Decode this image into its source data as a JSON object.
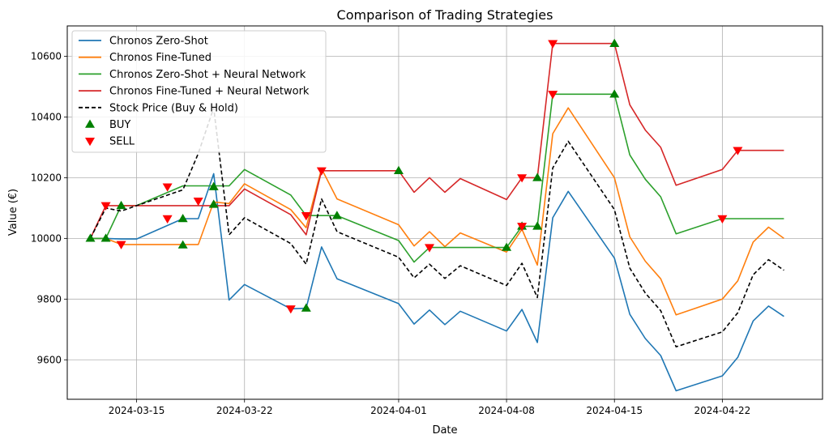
{
  "chart_data": {
    "type": "line",
    "title": "Comparison of Trading Strategies",
    "xlabel": "Date",
    "ylabel": "Value (€)",
    "xlim": [
      "2024-03-10T12:00",
      "2024-04-28T12:00"
    ],
    "ylim": [
      9470,
      10700
    ],
    "x_ticks": [
      "2024-03-15",
      "2024-03-22",
      "2024-04-01",
      "2024-04-08",
      "2024-04-15",
      "2024-04-22"
    ],
    "y_ticks": [
      9600,
      9800,
      10000,
      10200,
      10400,
      10600
    ],
    "grid": true,
    "legend_position": "upper-left",
    "dates": [
      "2024-03-12",
      "2024-03-13",
      "2024-03-14",
      "2024-03-15",
      "2024-03-18",
      "2024-03-19",
      "2024-03-20",
      "2024-03-21",
      "2024-03-22",
      "2024-03-25",
      "2024-03-26",
      "2024-03-27",
      "2024-03-28",
      "2024-04-01",
      "2024-04-02",
      "2024-04-03",
      "2024-04-04",
      "2024-04-05",
      "2024-04-08",
      "2024-04-09",
      "2024-04-10",
      "2024-04-11",
      "2024-04-12",
      "2024-04-15",
      "2024-04-16",
      "2024-04-17",
      "2024-04-18",
      "2024-04-19",
      "2024-04-22",
      "2024-04-23",
      "2024-04-24",
      "2024-04-25",
      "2024-04-26"
    ],
    "series": [
      {
        "name": "Chronos Zero-Shot",
        "color": "#1f77b4",
        "style": "solid",
        "values": [
          10000,
          10000,
          9998,
          9998,
          10065,
          10065,
          10213,
          9797,
          9848,
          9768,
          9770,
          9972,
          9867,
          9785,
          9718,
          9764,
          9716,
          9760,
          9695,
          9766,
          9657,
          10068,
          10155,
          9935,
          9750,
          9670,
          9614,
          9498,
          9547,
          9608,
          9728,
          9777,
          9743
        ]
      },
      {
        "name": "Chronos Fine-Tuned",
        "color": "#ff7f0e",
        "style": "solid",
        "values": [
          10000,
          10000,
          9980,
          9980,
          9980,
          9980,
          10120,
          10115,
          10180,
          10095,
          10035,
          10230,
          10130,
          10045,
          9975,
          10022,
          9973,
          10018,
          9955,
          10030,
          9912,
          10345,
          10430,
          10200,
          10005,
          9925,
          9867,
          9748,
          9800,
          9860,
          9988,
          10037,
          10000
        ]
      },
      {
        "name": "Chronos Zero-Shot + Neural Network",
        "color": "#2ca02c",
        "style": "solid",
        "values": [
          10000,
          10000,
          10108,
          10108,
          10173,
          10173,
          10173,
          10173,
          10227,
          10143,
          10075,
          10075,
          10075,
          9993,
          9922,
          9970,
          9970,
          9970,
          9970,
          10040,
          10040,
          10475,
          10475,
          10475,
          10275,
          10195,
          10137,
          10015,
          10065,
          10065,
          10065,
          10065,
          10065
        ]
      },
      {
        "name": "Chronos Fine-Tuned + Neural Network",
        "color": "#d62728",
        "style": "solid",
        "values": [
          10000,
          10108,
          10108,
          10108,
          10108,
          10108,
          10108,
          10108,
          10163,
          10078,
          10012,
          10223,
          10223,
          10223,
          10152,
          10200,
          10152,
          10197,
          10128,
          10200,
          10200,
          10642,
          10642,
          10642,
          10440,
          10357,
          10300,
          10175,
          10227,
          10290,
          10290,
          10290,
          10290
        ]
      },
      {
        "name": "Stock Price (Buy & Hold)",
        "color": "#000000",
        "style": "dashed",
        "values": [
          10000,
          10100,
          10090,
          10108,
          10160,
          10280,
          10430,
          10012,
          10068,
          9983,
          9915,
          10130,
          10022,
          9938,
          9870,
          9915,
          9868,
          9910,
          9845,
          9918,
          9805,
          10232,
          10320,
          10095,
          9902,
          9820,
          9762,
          9643,
          9692,
          9755,
          9880,
          9930,
          9895
        ]
      }
    ],
    "markers": [
      {
        "name": "BUY",
        "shape": "triangle-up",
        "color": "#008000",
        "points": [
          [
            "2024-03-12",
            10000
          ],
          [
            "2024-03-13",
            10000
          ],
          [
            "2024-03-14",
            10108
          ],
          [
            "2024-03-18",
            10065
          ],
          [
            "2024-03-18",
            9978
          ],
          [
            "2024-03-20",
            10170
          ],
          [
            "2024-03-20",
            10112
          ],
          [
            "2024-03-26",
            9770
          ],
          [
            "2024-03-28",
            10075
          ],
          [
            "2024-04-01",
            10223
          ],
          [
            "2024-04-08",
            9970
          ],
          [
            "2024-04-09",
            10040
          ],
          [
            "2024-04-10",
            10200
          ],
          [
            "2024-04-10",
            10040
          ],
          [
            "2024-04-15",
            10642
          ],
          [
            "2024-04-15",
            10475
          ]
        ]
      },
      {
        "name": "SELL",
        "shape": "triangle-down",
        "color": "#ff0000",
        "points": [
          [
            "2024-03-13",
            10108
          ],
          [
            "2024-03-14",
            9980
          ],
          [
            "2024-03-17",
            10170
          ],
          [
            "2024-03-17",
            10065
          ],
          [
            "2024-03-19",
            10123
          ],
          [
            "2024-03-25",
            9768
          ],
          [
            "2024-03-26",
            10075
          ],
          [
            "2024-03-27",
            10223
          ],
          [
            "2024-04-03",
            9970
          ],
          [
            "2024-04-09",
            10200
          ],
          [
            "2024-04-09",
            10040
          ],
          [
            "2024-04-11",
            10642
          ],
          [
            "2024-04-11",
            10475
          ],
          [
            "2024-04-22",
            10065
          ],
          [
            "2024-04-23",
            10290
          ]
        ]
      }
    ]
  }
}
